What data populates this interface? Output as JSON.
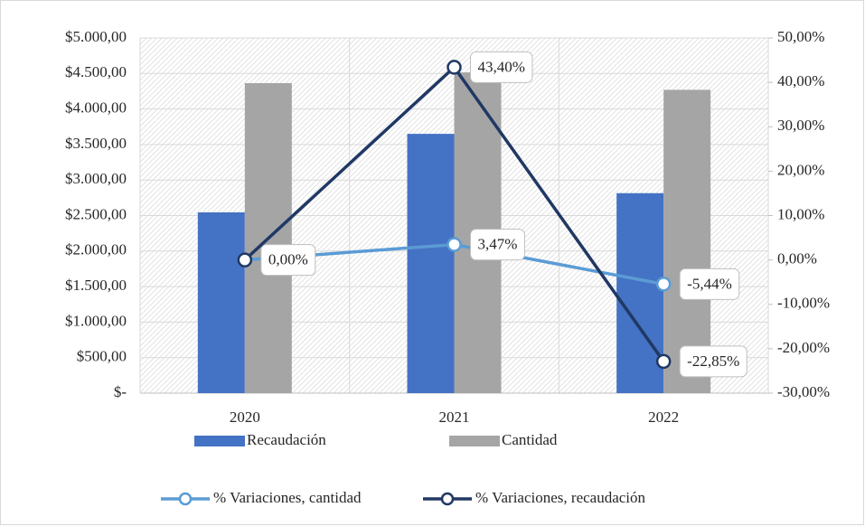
{
  "chart_data": {
    "type": "bar",
    "categories": [
      "2020",
      "2021",
      "2022"
    ],
    "series": [
      {
        "name": "Recaudación",
        "type": "bar",
        "axis": "y",
        "color": "#4472c4",
        "values": [
          2545,
          3650,
          2815
        ]
      },
      {
        "name": "Cantidad",
        "type": "bar",
        "axis": "y",
        "color": "#a5a5a5",
        "values": [
          4364,
          4515,
          4270
        ]
      },
      {
        "name": "% Variaciones, cantidad",
        "type": "line",
        "axis": "y2",
        "color": "#5b9bd5",
        "values": [
          0,
          3.47,
          -5.44
        ],
        "value_labels": [
          "0,00%",
          "3,47%",
          "-5,44%"
        ]
      },
      {
        "name": "% Variaciones, recaudación",
        "type": "line",
        "axis": "y2",
        "color": "#203864",
        "values": [
          0,
          43.4,
          -22.85
        ],
        "value_labels": [
          "0,00%",
          "43,40%",
          "-22,85%"
        ]
      }
    ],
    "ylim": [
      0,
      5000
    ],
    "yticks": [
      {
        "value": 0,
        "label": "$-"
      },
      {
        "value": 500,
        "label": "$500,00"
      },
      {
        "value": 1000,
        "label": "$1.000,00"
      },
      {
        "value": 1500,
        "label": "$1.500,00"
      },
      {
        "value": 2000,
        "label": "$2.000,00"
      },
      {
        "value": 2500,
        "label": "$2.500,00"
      },
      {
        "value": 3000,
        "label": "$3.000,00"
      },
      {
        "value": 3500,
        "label": "$3.500,00"
      },
      {
        "value": 4000,
        "label": "$4.000,00"
      },
      {
        "value": 4500,
        "label": "$4.500,00"
      },
      {
        "value": 5000,
        "label": "$5.000,00"
      }
    ],
    "y2lim": [
      -30,
      50
    ],
    "y2ticks": [
      {
        "value": -30,
        "label": "-30,00%"
      },
      {
        "value": -20,
        "label": "-20,00%"
      },
      {
        "value": -10,
        "label": "-10,00%"
      },
      {
        "value": 0,
        "label": "0,00%"
      },
      {
        "value": 10,
        "label": "10,00%"
      },
      {
        "value": 20,
        "label": "20,00%"
      },
      {
        "value": 30,
        "label": "30,00%"
      },
      {
        "value": 40,
        "label": "40,00%"
      },
      {
        "value": 50,
        "label": "50,00%"
      }
    ],
    "grid": true,
    "legend": "bottom"
  }
}
